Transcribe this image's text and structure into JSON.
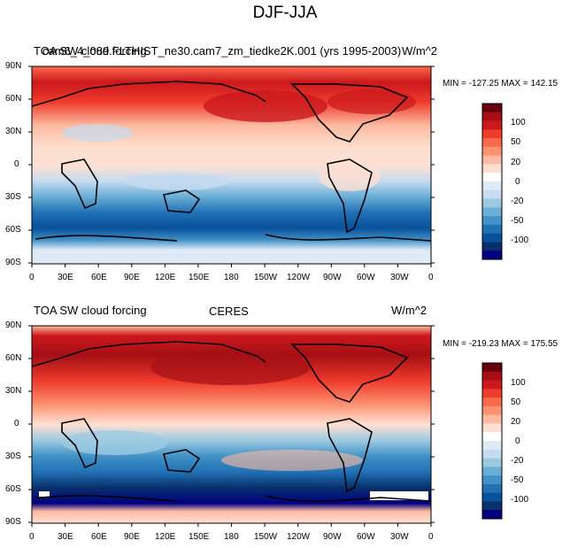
{
  "main_title": "DJF-JJA",
  "panels": [
    {
      "left_title": "TOA SW cloud forcing",
      "center_title": "cam6_4_089.FLTHIST_ne30.cam7_zm_tiedke2K.001 (yrs 1995-2003)",
      "units": "W/m^2",
      "stats": "MIN = -127.25 MAX = 142.15"
    },
    {
      "left_title": "TOA SW cloud forcing",
      "center_title": "CERES",
      "units": "W/m^2",
      "stats": "MIN = -219.23 MAX = 175.55"
    }
  ],
  "lat_labels": [
    "90N",
    "60N",
    "30N",
    "0",
    "30S",
    "60S",
    "90S"
  ],
  "lon_labels": [
    "0",
    "30E",
    "60E",
    "90E",
    "120E",
    "150E",
    "180",
    "150W",
    "120W",
    "90W",
    "60W",
    "30W",
    "0"
  ],
  "colorbar_labels": [
    "100",
    "50",
    "20",
    "0",
    "-20",
    "-50",
    "-100"
  ],
  "colorbar_colors": [
    "#67000d",
    "#a50f15",
    "#cb181d",
    "#ef3b2c",
    "#fb6a4a",
    "#fc9272",
    "#fcbba1",
    "#fee0d2",
    "#ffffff",
    "#deebf7",
    "#c6dbef",
    "#9ecae1",
    "#6baed6",
    "#4292c6",
    "#2171b5",
    "#08519c",
    "#08306b",
    "#000080"
  ]
}
